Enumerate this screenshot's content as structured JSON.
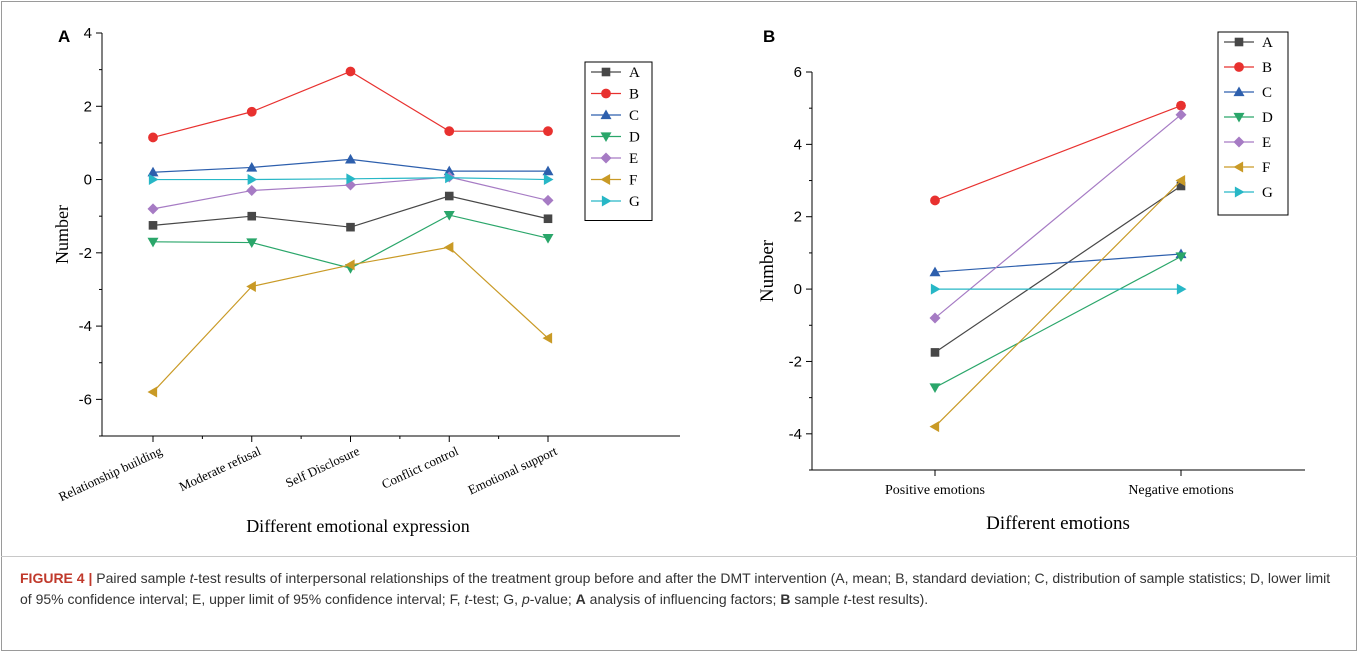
{
  "caption": {
    "figure_label": "FIGURE 4 |",
    "part1": " Paired sample ",
    "t1": "t",
    "part2": "-test results of interpersonal relationships of the treatment group before and after the DMT intervention (A, mean; B, standard deviation; C, distribution of sample statistics; D, lower limit of 95% confidence interval; E, upper limit of 95% confidence interval; F, ",
    "t2": "t",
    "part3": "-test; G, ",
    "p": "p",
    "part4": "-value; ",
    "boldA": "A",
    "part5": " analysis of influencing factors; ",
    "boldB": "B",
    "part6": " sample ",
    "t3": "t",
    "part7": "-test results)."
  },
  "series_colors": {
    "A": "#474747",
    "B": "#e8312f",
    "C": "#2d5fad",
    "D": "#2aa66a",
    "E": "#a67bc4",
    "F": "#c99a26",
    "G": "#27b7c6"
  },
  "series_markers": {
    "A": "square",
    "B": "circle",
    "C": "triangle-up",
    "D": "triangle-down",
    "E": "diamond",
    "F": "triangle-left",
    "G": "triangle-right"
  },
  "chart_data": [
    {
      "panel": "A",
      "type": "line",
      "title": "",
      "xlabel": "Different emotional expression",
      "ylabel": "Number",
      "categories": [
        "Relationship building",
        "Moderate refusal",
        "Self Disclosure",
        "Conflict control",
        "Emotional support"
      ],
      "ylim": [
        -7,
        4
      ],
      "yticks": [
        -6,
        -4,
        -2,
        0,
        2,
        4
      ],
      "legend": "top-right",
      "grid": false,
      "series": [
        {
          "name": "A",
          "values": [
            -1.25,
            -1.0,
            -1.3,
            -0.45,
            -1.07
          ]
        },
        {
          "name": "B",
          "values": [
            1.15,
            1.85,
            2.95,
            1.32,
            1.32
          ]
        },
        {
          "name": "C",
          "values": [
            0.2,
            0.33,
            0.55,
            0.23,
            0.23
          ]
        },
        {
          "name": "D",
          "values": [
            -1.7,
            -1.72,
            -2.42,
            -0.97,
            -1.6
          ]
        },
        {
          "name": "E",
          "values": [
            -0.8,
            -0.3,
            -0.15,
            0.07,
            -0.57
          ]
        },
        {
          "name": "F",
          "values": [
            -5.8,
            -2.92,
            -2.33,
            -1.85,
            -4.33
          ]
        },
        {
          "name": "G",
          "values": [
            0.0,
            0.0,
            0.02,
            0.05,
            0.0
          ]
        }
      ]
    },
    {
      "panel": "B",
      "type": "line",
      "title": "",
      "xlabel": "Different emotions",
      "ylabel": "Number",
      "categories": [
        "Positive emotions",
        "Negative emotions"
      ],
      "ylim": [
        -5,
        6
      ],
      "yticks": [
        -4,
        -2,
        0,
        2,
        4,
        6
      ],
      "legend": "top-right",
      "grid": false,
      "series": [
        {
          "name": "A",
          "values": [
            -1.75,
            2.85
          ]
        },
        {
          "name": "B",
          "values": [
            2.45,
            5.07
          ]
        },
        {
          "name": "C",
          "values": [
            0.47,
            0.97
          ]
        },
        {
          "name": "D",
          "values": [
            -2.72,
            0.9
          ]
        },
        {
          "name": "E",
          "values": [
            -0.8,
            4.82
          ]
        },
        {
          "name": "F",
          "values": [
            -3.8,
            3.0
          ]
        },
        {
          "name": "G",
          "values": [
            0.0,
            0.0
          ]
        }
      ]
    }
  ]
}
